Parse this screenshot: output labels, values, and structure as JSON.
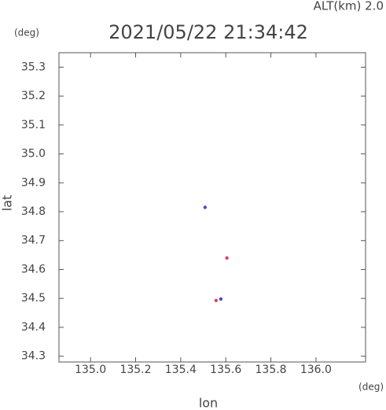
{
  "chart_data": {
    "type": "scatter",
    "title": "2021/05/22 21:34:42",
    "altitude_label": "ALT(km) 2.0",
    "y_unit": "(deg)",
    "x_unit": "(deg)",
    "xlabel": "lon",
    "ylabel": "lat",
    "xlim": [
      134.86,
      136.22
    ],
    "ylim": [
      34.28,
      35.35
    ],
    "xticks": [
      {
        "value": 135.0,
        "label": "135.0"
      },
      135.2,
      135.4,
      135.6,
      135.8,
      {
        "value": 136.0,
        "label": "136.0"
      }
    ],
    "yticks": [
      34.3,
      34.4,
      34.5,
      34.6,
      34.7,
      34.8,
      34.9,
      {
        "value": 35.0,
        "label": "35.0"
      },
      35.1,
      35.2,
      35.3
    ],
    "series": [
      {
        "color": "#4a4ad0",
        "x": [
          135.508,
          135.578
        ],
        "y": [
          34.815,
          34.498
        ]
      },
      {
        "color": "#e0406a",
        "x": [
          135.605,
          135.557
        ],
        "y": [
          34.64,
          34.493
        ]
      }
    ]
  }
}
